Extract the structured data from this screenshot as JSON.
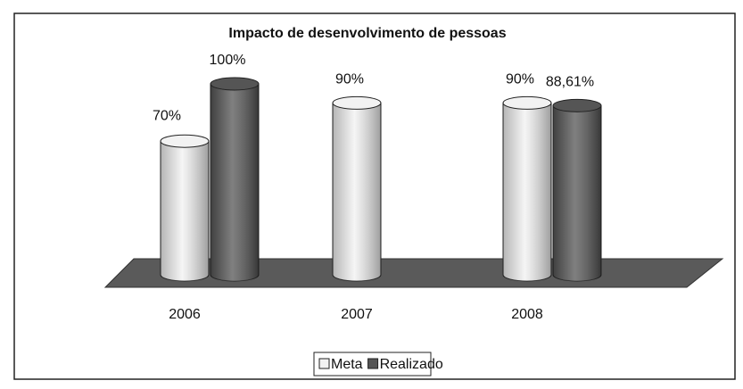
{
  "chart_data": {
    "type": "bar3d",
    "title": "Impacto de desenvolvimento de pessoas",
    "categories": [
      "2006",
      "2007",
      "2008"
    ],
    "series": [
      {
        "name": "Meta",
        "color": "#f2f2f2",
        "values": [
          70,
          90,
          90
        ],
        "value_labels": [
          "70%",
          "90%",
          "90%"
        ]
      },
      {
        "name": "Realizado",
        "color": "#555555",
        "values": [
          100,
          null,
          88.61
        ],
        "value_labels": [
          "100%",
          null,
          "88,61%"
        ]
      }
    ],
    "floor_color": "#5a5a5a",
    "legend": "bottom"
  }
}
